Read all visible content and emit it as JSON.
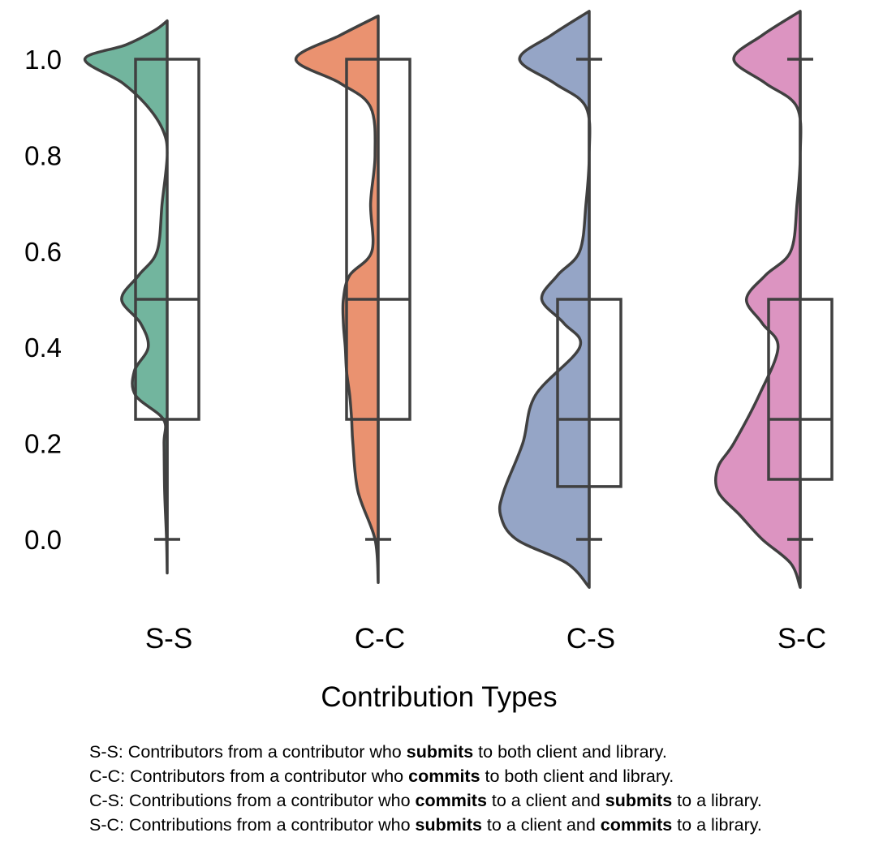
{
  "chart_data": {
    "type": "raincloud",
    "ylim": [
      -0.1,
      1.1
    ],
    "yticks": [
      "0.0",
      "0.2",
      "0.4",
      "0.6",
      "0.8",
      "1.0"
    ],
    "ytick_values": [
      0.0,
      0.2,
      0.4,
      0.6,
      0.8,
      1.0
    ],
    "xlabel": "Contribution Types",
    "ylabel": "",
    "categories": [
      "S-S",
      "C-C",
      "C-S",
      "S-C"
    ],
    "colors": [
      "#72b59e",
      "#ea9270",
      "#95a5c6",
      "#dc94c1"
    ],
    "boxplots": [
      {
        "category": "S-S",
        "whisker_low": 0.0,
        "q1": 0.25,
        "median": 0.5,
        "q3": 1.0,
        "whisker_high": 1.0
      },
      {
        "category": "C-C",
        "whisker_low": 0.0,
        "q1": 0.25,
        "median": 0.5,
        "q3": 1.0,
        "whisker_high": 1.0
      },
      {
        "category": "C-S",
        "whisker_low": 0.0,
        "q1": 0.11,
        "median": 0.25,
        "q3": 0.5,
        "whisker_high": 1.0
      },
      {
        "category": "S-C",
        "whisker_low": 0.0,
        "q1": 0.125,
        "median": 0.25,
        "q3": 0.5,
        "whisker_high": 1.0
      }
    ],
    "violins": [
      {
        "category": "S-S",
        "density": [
          [
            -0.07,
            0.0
          ],
          [
            0.0,
            0.01
          ],
          [
            0.1,
            0.04
          ],
          [
            0.2,
            0.05
          ],
          [
            0.25,
            0.06
          ],
          [
            0.3,
            0.5
          ],
          [
            0.35,
            0.52
          ],
          [
            0.4,
            0.3
          ],
          [
            0.45,
            0.42
          ],
          [
            0.5,
            0.72
          ],
          [
            0.55,
            0.45
          ],
          [
            0.6,
            0.16
          ],
          [
            0.7,
            0.08
          ],
          [
            0.8,
            0.0
          ],
          [
            0.85,
            0.06
          ],
          [
            0.9,
            0.3
          ],
          [
            0.95,
            0.7
          ],
          [
            1.0,
            1.3
          ],
          [
            1.03,
            0.65
          ],
          [
            1.06,
            0.2
          ],
          [
            1.08,
            0.0
          ]
        ]
      },
      {
        "category": "C-C",
        "density": [
          [
            -0.09,
            0.0
          ],
          [
            0.0,
            0.05
          ],
          [
            0.1,
            0.32
          ],
          [
            0.2,
            0.4
          ],
          [
            0.25,
            0.42
          ],
          [
            0.3,
            0.45
          ],
          [
            0.35,
            0.5
          ],
          [
            0.4,
            0.52
          ],
          [
            0.45,
            0.55
          ],
          [
            0.5,
            0.55
          ],
          [
            0.55,
            0.45
          ],
          [
            0.6,
            0.1
          ],
          [
            0.7,
            0.12
          ],
          [
            0.8,
            0.05
          ],
          [
            0.9,
            0.12
          ],
          [
            0.95,
            0.6
          ],
          [
            1.0,
            1.3
          ],
          [
            1.05,
            0.6
          ],
          [
            1.09,
            0.0
          ]
        ]
      },
      {
        "category": "C-S",
        "density": [
          [
            -0.1,
            0.0
          ],
          [
            -0.05,
            0.35
          ],
          [
            0.0,
            1.15
          ],
          [
            0.05,
            1.4
          ],
          [
            0.1,
            1.35
          ],
          [
            0.2,
            1.05
          ],
          [
            0.3,
            0.85
          ],
          [
            0.4,
            0.15
          ],
          [
            0.45,
            0.4
          ],
          [
            0.5,
            0.75
          ],
          [
            0.55,
            0.5
          ],
          [
            0.6,
            0.15
          ],
          [
            0.7,
            0.05
          ],
          [
            0.8,
            0.0
          ],
          [
            0.9,
            0.05
          ],
          [
            0.95,
            0.55
          ],
          [
            1.0,
            1.1
          ],
          [
            1.05,
            0.6
          ],
          [
            1.1,
            0.0
          ]
        ]
      },
      {
        "category": "S-C",
        "density": [
          [
            -0.1,
            0.0
          ],
          [
            -0.05,
            0.15
          ],
          [
            0.0,
            0.6
          ],
          [
            0.05,
            0.95
          ],
          [
            0.1,
            1.3
          ],
          [
            0.15,
            1.3
          ],
          [
            0.2,
            1.05
          ],
          [
            0.3,
            0.65
          ],
          [
            0.4,
            0.35
          ],
          [
            0.45,
            0.6
          ],
          [
            0.5,
            0.85
          ],
          [
            0.55,
            0.55
          ],
          [
            0.6,
            0.15
          ],
          [
            0.7,
            0.05
          ],
          [
            0.8,
            0.0
          ],
          [
            0.9,
            0.05
          ],
          [
            0.95,
            0.55
          ],
          [
            1.0,
            1.05
          ],
          [
            1.05,
            0.6
          ],
          [
            1.1,
            0.0
          ]
        ]
      }
    ]
  },
  "footnotes": [
    {
      "id": "ss",
      "parts": [
        {
          "text": "S-S: Contributors from a contributor who ",
          "bold": false
        },
        {
          "text": "submits",
          "bold": true
        },
        {
          "text": " to both client and library.",
          "bold": false
        }
      ]
    },
    {
      "id": "cc",
      "parts": [
        {
          "text": "C-C: Contributors from a contributor who ",
          "bold": false
        },
        {
          "text": "commits",
          "bold": true
        },
        {
          "text": " to both client and library.",
          "bold": false
        }
      ]
    },
    {
      "id": "cs",
      "parts": [
        {
          "text": "C-S: Contributions from a contributor who ",
          "bold": false
        },
        {
          "text": "commits",
          "bold": true
        },
        {
          "text": " to a client and ",
          "bold": false
        },
        {
          "text": "submits",
          "bold": true
        },
        {
          "text": " to a library.",
          "bold": false
        }
      ]
    },
    {
      "id": "sc",
      "parts": [
        {
          "text": "S-C: Contributions from a contributor who ",
          "bold": false
        },
        {
          "text": "submits",
          "bold": true
        },
        {
          "text": " to a client and ",
          "bold": false
        },
        {
          "text": "commits",
          "bold": true
        },
        {
          "text": " to a library.",
          "bold": false
        }
      ]
    }
  ]
}
